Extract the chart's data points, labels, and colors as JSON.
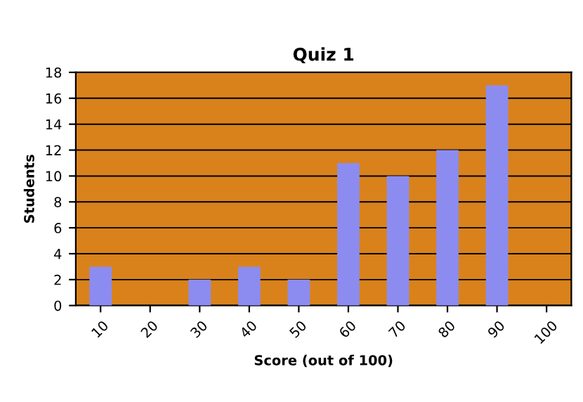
{
  "chart_data": {
    "type": "bar",
    "title": "Quiz 1",
    "xlabel": "Score (out of 100)",
    "ylabel": "Students",
    "categories": [
      "10",
      "20",
      "30",
      "40",
      "50",
      "60",
      "70",
      "80",
      "90",
      "100"
    ],
    "values": [
      3,
      0,
      2,
      3,
      2,
      11,
      10,
      12,
      17,
      0
    ],
    "color": "#8c8cf0",
    "ylim": [
      0,
      18
    ],
    "yticks": [
      0,
      2,
      4,
      6,
      8,
      10,
      12,
      14,
      16,
      18
    ],
    "grid": "y"
  }
}
